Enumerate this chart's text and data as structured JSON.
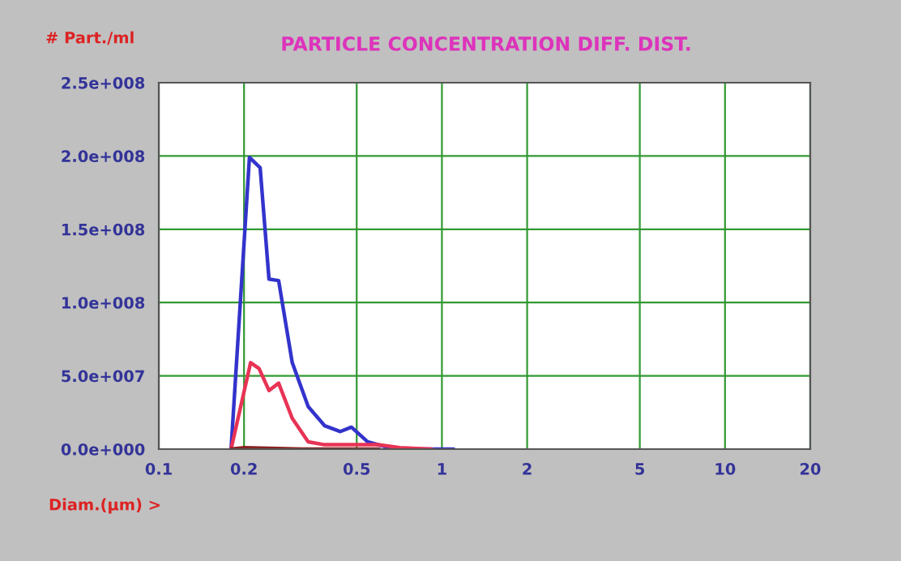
{
  "chart_data": {
    "type": "line",
    "title": "PARTICLE CONCENTRATION DIFF. DIST.",
    "xlabel": "Diam.(µm) >",
    "ylabel": "# Part./ml",
    "log": "x",
    "grid": true,
    "marker": "none",
    "line_style": "solid",
    "xlim": [
      0.1,
      20
    ],
    "xticks": [
      0.1,
      0.2,
      0.5,
      1,
      2,
      5,
      10,
      20
    ],
    "ylim": [
      0,
      250000000
    ],
    "yticks": [
      {
        "value": 0,
        "label": "0.0e+000"
      },
      {
        "value": 50000000,
        "label": "5.0e+007"
      },
      {
        "value": 100000000,
        "label": "1.0e+008"
      },
      {
        "value": 150000000,
        "label": "1.5e+008"
      },
      {
        "value": 200000000,
        "label": "2.0e+008"
      },
      {
        "value": 250000000,
        "label": "2.5e+008"
      }
    ],
    "series": [
      {
        "color": "#3333cc",
        "x": [
          0.18,
          0.209,
          0.228,
          0.245,
          0.265,
          0.296,
          0.337,
          0.385,
          0.438,
          0.479,
          0.546,
          0.649,
          0.77,
          1.1
        ],
        "values": [
          0,
          199000000,
          192000000,
          116000000,
          115000000,
          59000000,
          29000000,
          16000000,
          12000000,
          15000000,
          5000000,
          1000000,
          0,
          0
        ]
      },
      {
        "color": "#e83355",
        "x": [
          0.18,
          0.211,
          0.226,
          0.245,
          0.265,
          0.296,
          0.337,
          0.385,
          0.595,
          0.71,
          0.92
        ],
        "values": [
          0,
          59000000,
          55000000,
          40000000,
          45000000,
          21000000,
          5000000,
          3000000,
          3000000,
          1000000,
          0
        ]
      },
      {
        "color": "#882222",
        "x": [
          0.18,
          0.2,
          0.32,
          0.6
        ],
        "values": [
          0,
          1000000,
          0,
          0
        ]
      }
    ]
  }
}
